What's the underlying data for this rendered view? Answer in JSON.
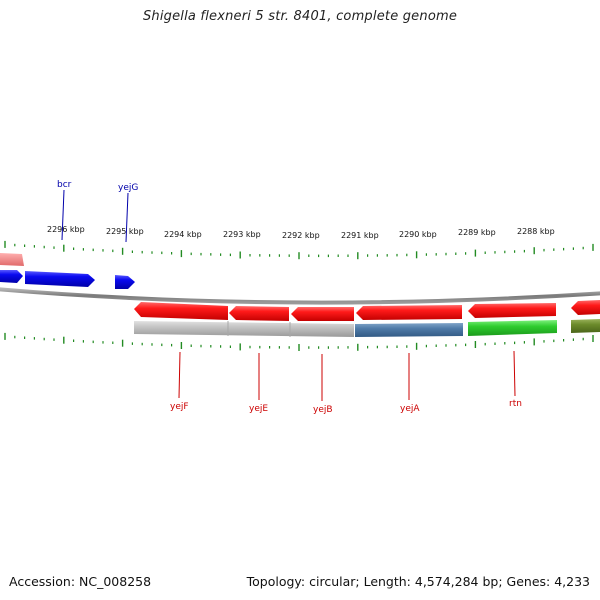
{
  "title": "Shigella flexneri 5 str. 8401, complete genome",
  "accession": "Accession: NC_008258",
  "meta": "Topology: circular; Length: 4,574,284 bp; Genes: 4,233",
  "colors": {
    "plus_strand_gene": "#0000ee",
    "minus_strand_gene": "#ee0000",
    "tick": "#228b22",
    "backbone": "#888888",
    "plus_label": "#0000aa",
    "minus_label": "#cc0000"
  },
  "scale": {
    "unit": "kbp",
    "ticks": [
      "2296 kbp",
      "2295 kbp",
      "2294 kbp",
      "2293 kbp",
      "2292 kbp",
      "2291 kbp",
      "2290 kbp",
      "2289 kbp",
      "2288 kbp"
    ]
  },
  "genes": [
    {
      "name": "bcr",
      "strand": "+"
    },
    {
      "name": "yejG",
      "strand": "+"
    },
    {
      "name": "yejF",
      "strand": "-"
    },
    {
      "name": "yejE",
      "strand": "-"
    },
    {
      "name": "yejB",
      "strand": "-"
    },
    {
      "name": "yejA",
      "strand": "-"
    },
    {
      "name": "rtn",
      "strand": "-"
    }
  ]
}
